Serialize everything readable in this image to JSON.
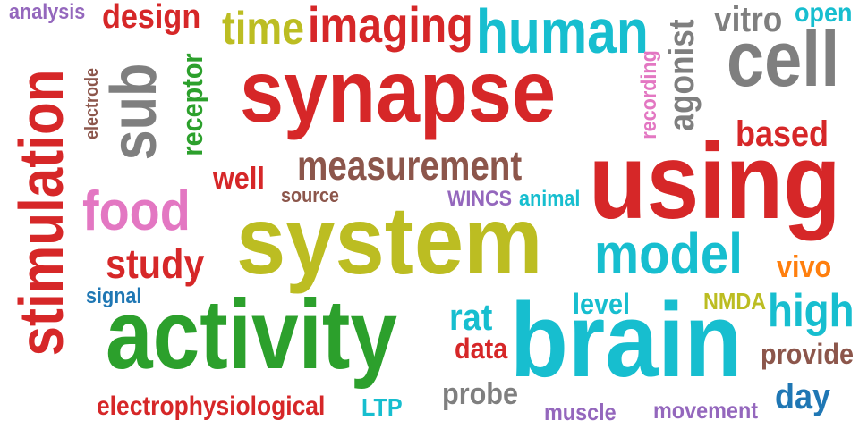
{
  "words": [
    {
      "key": "synapse",
      "text": "synapse",
      "color": "#d62728"
    },
    {
      "key": "system",
      "text": "system",
      "color": "#bcbd22"
    },
    {
      "key": "activity",
      "text": "activity",
      "color": "#2ca02c"
    },
    {
      "key": "brain",
      "text": "brain",
      "color": "#17becf"
    },
    {
      "key": "using",
      "text": "using",
      "color": "#d62728"
    },
    {
      "key": "stimulation",
      "text": "stimulation",
      "color": "#d62728"
    },
    {
      "key": "human",
      "text": "human",
      "color": "#17becf"
    },
    {
      "key": "cell",
      "text": "cell",
      "color": "#7f7f7f"
    },
    {
      "key": "model",
      "text": "model",
      "color": "#17becf"
    },
    {
      "key": "measurement",
      "text": "measurement",
      "color": "#8c564b"
    },
    {
      "key": "imaging",
      "text": "imaging",
      "color": "#d62728"
    },
    {
      "key": "time",
      "text": "time",
      "color": "#bcbd22"
    },
    {
      "key": "sub",
      "text": "sub",
      "color": "#7f7f7f"
    },
    {
      "key": "food",
      "text": "food",
      "color": "#e377c2"
    },
    {
      "key": "agonist",
      "text": "agonist",
      "color": "#7f7f7f"
    },
    {
      "key": "study",
      "text": "study",
      "color": "#d62728"
    },
    {
      "key": "design",
      "text": "design",
      "color": "#d62728"
    },
    {
      "key": "receptor",
      "text": "receptor",
      "color": "#2ca02c"
    },
    {
      "key": "high",
      "text": "high",
      "color": "#17becf"
    },
    {
      "key": "based",
      "text": "based",
      "color": "#d62728"
    },
    {
      "key": "electrophysiological",
      "text": "electrophysiological",
      "color": "#d62728"
    },
    {
      "key": "vitro",
      "text": "vitro",
      "color": "#7f7f7f"
    },
    {
      "key": "open",
      "text": "open",
      "color": "#17becf"
    },
    {
      "key": "well",
      "text": "well",
      "color": "#d62728"
    },
    {
      "key": "rat",
      "text": "rat",
      "color": "#17becf"
    },
    {
      "key": "day",
      "text": "day",
      "color": "#1f77b4"
    },
    {
      "key": "provide",
      "text": "provide",
      "color": "#8c564b"
    },
    {
      "key": "probe",
      "text": "probe",
      "color": "#7f7f7f"
    },
    {
      "key": "vivo",
      "text": "vivo",
      "color": "#ff7f0e"
    },
    {
      "key": "level",
      "text": "level",
      "color": "#17becf"
    },
    {
      "key": "data",
      "text": "data",
      "color": "#d62728"
    },
    {
      "key": "recording",
      "text": "recording",
      "color": "#e377c2"
    },
    {
      "key": "electrode",
      "text": "electrode",
      "color": "#8c564b"
    },
    {
      "key": "movement",
      "text": "movement",
      "color": "#9467bd"
    },
    {
      "key": "muscle",
      "text": "muscle",
      "color": "#9467bd"
    },
    {
      "key": "analysis",
      "text": "analysis",
      "color": "#9467bd"
    },
    {
      "key": "source",
      "text": "source",
      "color": "#8c564b"
    },
    {
      "key": "signal",
      "text": "signal",
      "color": "#1f77b4"
    },
    {
      "key": "NMDA",
      "text": "NMDA",
      "color": "#bcbd22"
    },
    {
      "key": "animal",
      "text": "animal",
      "color": "#17becf"
    },
    {
      "key": "WINCS",
      "text": "WINCS",
      "color": "#9467bd"
    },
    {
      "key": "LTP",
      "text": "LTP",
      "color": "#17becf"
    }
  ]
}
